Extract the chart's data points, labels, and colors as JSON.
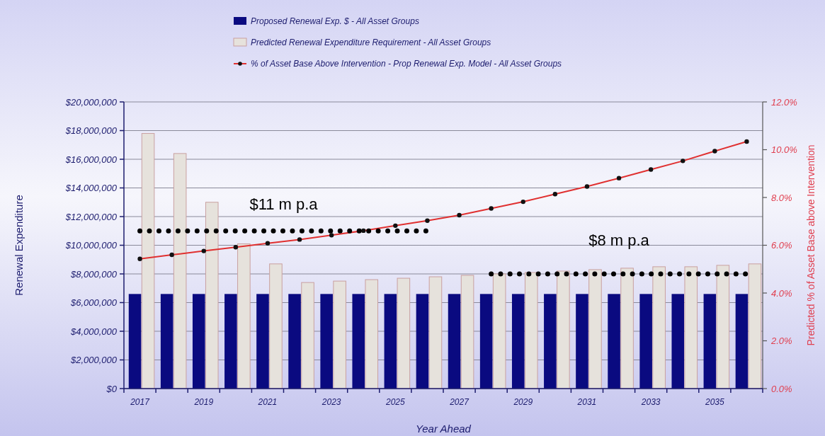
{
  "chart_data": {
    "type": "bar",
    "xlabel": "Year Ahead",
    "ylabel": "Renewal Expenditure",
    "y2label": "Predicted % of Asset Base above Intervention",
    "categories": [
      "2017",
      null,
      "2019",
      null,
      "2021",
      null,
      "2023",
      null,
      "2025",
      null,
      "2027",
      null,
      "2029",
      null,
      "2031",
      null,
      "2033",
      null,
      "2035",
      null
    ],
    "series": [
      {
        "name": "Proposed Renewal Exp. $ -  All Asset Groups",
        "color": "#0a0a80",
        "values": [
          6600000,
          6600000,
          6600000,
          6600000,
          6600000,
          6600000,
          6600000,
          6600000,
          6600000,
          6600000,
          6600000,
          6600000,
          6600000,
          6600000,
          6600000,
          6600000,
          6600000,
          6600000,
          6600000,
          6600000
        ]
      },
      {
        "name": "Predicted Renewal Expenditure Requirement -  All Asset Groups",
        "color": "#e6e2dc",
        "values": [
          17800000,
          16400000,
          13000000,
          10100000,
          8700000,
          7400000,
          7500000,
          7600000,
          7700000,
          7800000,
          7900000,
          8000000,
          8100000,
          8200000,
          8300000,
          8400000,
          8500000,
          8500000,
          8600000,
          8700000
        ]
      },
      {
        "name": "% of Asset Base Above Intervention - Prop Renewal Exp. Model -  All Asset Groups",
        "type": "line",
        "axis": "y2",
        "marker": "circle",
        "color": "#e03030",
        "values": [
          5.43,
          5.6,
          5.76,
          5.92,
          6.08,
          6.24,
          6.42,
          6.61,
          6.82,
          7.03,
          7.26,
          7.54,
          7.82,
          8.14,
          8.46,
          8.81,
          9.17,
          9.53,
          9.94,
          10.34
        ]
      },
      {
        "type": "line",
        "line_style": "dotted",
        "color": "#000000",
        "values": [
          11000000,
          11000000,
          11000000,
          11000000,
          11000000,
          11000000,
          11000000,
          11000000,
          11000000,
          11000000,
          null,
          null,
          null,
          null,
          null,
          null,
          null,
          null,
          null,
          null
        ]
      },
      {
        "type": "line",
        "line_style": "dotted",
        "color": "#000000",
        "values": [
          null,
          null,
          null,
          null,
          null,
          null,
          null,
          null,
          null,
          null,
          null,
          8000000,
          8000000,
          8000000,
          8000000,
          8000000,
          8000000,
          8000000,
          8000000,
          8000000
        ]
      }
    ],
    "ylim": [
      0,
      20000000
    ],
    "yticks": [
      {
        "value": 0,
        "label": "$0"
      },
      {
        "value": 2000000,
        "label": "$2,000,000"
      },
      {
        "value": 4000000,
        "label": "$4,000,000"
      },
      {
        "value": 6000000,
        "label": "$6,000,000"
      },
      {
        "value": 8000000,
        "label": "$8,000,000"
      },
      {
        "value": 10000000,
        "label": "$10,000,000"
      },
      {
        "value": 12000000,
        "label": "$12,000,000"
      },
      {
        "value": 14000000,
        "label": "$14,000,000"
      },
      {
        "value": 16000000,
        "label": "$16,000,000"
      },
      {
        "value": 18000000,
        "label": "$18,000,000"
      },
      {
        "value": 20000000,
        "label": "$20,000,000"
      }
    ],
    "y2lim": [
      0,
      12
    ],
    "y2ticks": [
      {
        "value": 0,
        "label": "0.0%"
      },
      {
        "value": 2,
        "label": "2.0%"
      },
      {
        "value": 4,
        "label": "4.0%"
      },
      {
        "value": 6,
        "label": "6.0%"
      },
      {
        "value": 8,
        "label": "8.0%"
      },
      {
        "value": 10,
        "label": "10.0%"
      },
      {
        "value": 12,
        "label": "12.0%"
      }
    ],
    "annotations": [
      "$11 m p.a",
      "$8 m p.a"
    ],
    "grid": "y",
    "legend": "top"
  }
}
